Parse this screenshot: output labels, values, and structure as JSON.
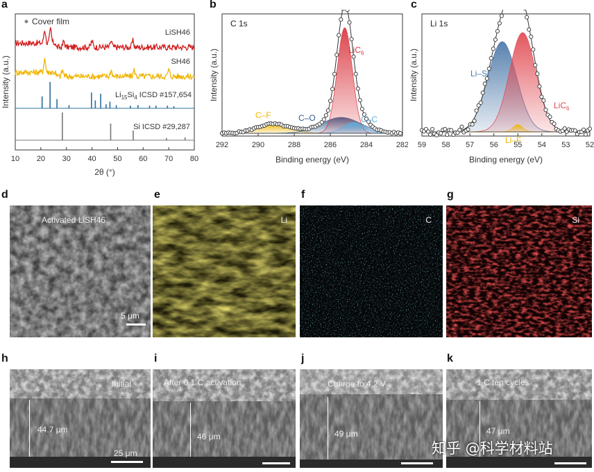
{
  "panel_letters": [
    "a",
    "b",
    "c",
    "d",
    "e",
    "f",
    "g",
    "h",
    "i",
    "j",
    "k"
  ],
  "watermark": "知乎 @科学材料站",
  "chart_data": [
    {
      "panel": "a",
      "type": "line",
      "xlabel": "2θ (°)",
      "ylabel": "Intensity (a.u.)",
      "xlim": [
        10,
        80
      ],
      "xticks": [
        10,
        20,
        30,
        40,
        50,
        60,
        70,
        80
      ],
      "legend_marker": "Cover film",
      "series": [
        {
          "name": "LiSH46",
          "color": "#d21e1e",
          "peaks": [
            21.5,
            23.8,
            29.0,
            40.0,
            47.5,
            56.0
          ]
        },
        {
          "name": "SH46",
          "color": "#f0b400",
          "peaks": [
            21.5,
            28.5,
            47.5,
            56.5,
            70.0
          ]
        },
        {
          "name_parts": [
            "Li",
            "15",
            "Si",
            "4",
            " ICSD #157,654"
          ],
          "color": "#2a6e9a",
          "type": "stick",
          "sticks": [
            [
              20.5,
              0.45
            ],
            [
              23.6,
              1.0
            ],
            [
              26.3,
              0.35
            ],
            [
              31.0,
              0.12
            ],
            [
              39.8,
              0.6
            ],
            [
              41.3,
              0.3
            ],
            [
              43.4,
              0.55
            ],
            [
              45.5,
              0.15
            ],
            [
              47.0,
              0.25
            ],
            [
              49.5,
              0.12
            ],
            [
              55.0,
              0.1
            ],
            [
              58.0,
              0.12
            ],
            [
              62.5,
              0.1
            ],
            [
              65.0,
              0.1
            ],
            [
              69.5,
              0.1
            ],
            [
              72.0,
              0.08
            ]
          ]
        },
        {
          "name": "Si ICSD #29,287",
          "color": "#777777",
          "type": "stick",
          "sticks": [
            [
              28.4,
              1.0
            ],
            [
              47.3,
              0.6
            ],
            [
              56.1,
              0.35
            ],
            [
              69.1,
              0.08
            ],
            [
              76.4,
              0.1
            ]
          ]
        }
      ]
    },
    {
      "panel": "b",
      "type": "area",
      "title": "C 1s",
      "xlabel": "Binding energy (eV)",
      "ylabel": "Intensity (a.u.)",
      "xlim": [
        292,
        282
      ],
      "xticks": [
        292,
        290,
        288,
        286,
        284,
        282
      ],
      "series": [
        {
          "name": "C–F",
          "color": "#f0b400",
          "center": 289.2,
          "height": 0.07,
          "width": 0.9
        },
        {
          "name": "C–O",
          "color": "#2f5f8f",
          "center": 285.4,
          "height": 0.12,
          "width": 1.1
        },
        {
          "name": "LiC",
          "sub": "6",
          "color": "#d9363e",
          "center": 285.2,
          "height": 0.8,
          "width": 0.42
        },
        {
          "name": "C–C",
          "color": "#5aaee0",
          "center": 284.7,
          "height": 0.08,
          "width": 0.6
        }
      ]
    },
    {
      "panel": "c",
      "type": "area",
      "title": "Li 1s",
      "xlabel": "Binding energy (eV)",
      "ylabel": "Intensity (a.u.)",
      "xlim": [
        59,
        52
      ],
      "xticks": [
        59,
        58,
        57,
        56,
        55,
        54,
        53,
        52
      ],
      "series": [
        {
          "name": "Li–Si",
          "color": "#4a77a8",
          "center": 55.65,
          "height": 0.5,
          "width": 0.6
        },
        {
          "name": "LiC",
          "sub": "6",
          "color": "#e04a52",
          "center": 54.8,
          "height": 0.55,
          "width": 0.55
        },
        {
          "name": "Li–F",
          "color": "#f0b400",
          "center": 55.0,
          "height": 0.04,
          "width": 0.2
        }
      ]
    }
  ],
  "images": {
    "d": {
      "label": "Activated LiSH46",
      "scale": "5 μm"
    },
    "e": {
      "label": "Li"
    },
    "f": {
      "label": "C"
    },
    "g": {
      "label": "Si"
    },
    "h": {
      "label": "Initial",
      "thickness": "44.7 μm",
      "scale": "25 μm"
    },
    "i": {
      "label": "After 0.1 C activation",
      "thickness": "46 μm"
    },
    "j": {
      "label": "Charge to 4.2 V",
      "thickness": "49 μm"
    },
    "k": {
      "label": "1 C ten cycles",
      "thickness": "47 μm"
    }
  }
}
